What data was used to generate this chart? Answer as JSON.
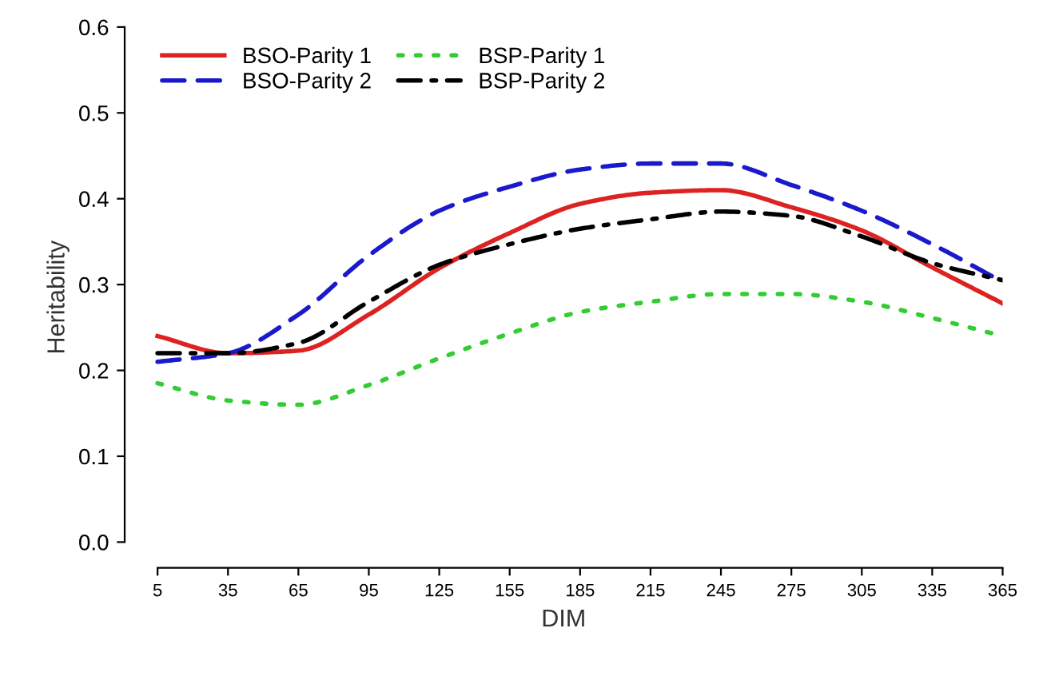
{
  "chart_data": {
    "type": "line",
    "xlabel": "DIM",
    "ylabel": "Heritability",
    "xlim": [
      -9,
      365
    ],
    "ylim": [
      -0.03,
      0.6
    ],
    "xticks": [
      5,
      35,
      65,
      95,
      125,
      155,
      185,
      215,
      245,
      275,
      305,
      335,
      365
    ],
    "yticks": [
      {
        "value": 0,
        "label": "0.0"
      },
      0.1,
      0.2,
      0.3,
      0.4,
      0.5,
      0.6
    ],
    "grid": false,
    "legend": "top left",
    "x": [
      5,
      35,
      65,
      95,
      125,
      155,
      185,
      215,
      245,
      275,
      305,
      335,
      365
    ],
    "series": [
      {
        "name": "BSO-Parity 1",
        "color": "#dd2222",
        "line_style": "solid",
        "values": [
          0.24,
          0.22,
          0.223,
          0.265,
          0.319,
          0.36,
          0.394,
          0.407,
          0.41,
          0.39,
          0.363,
          0.32,
          0.278
        ]
      },
      {
        "name": "BSO-Parity 2",
        "color": "#1a1acc",
        "line_style": "dashed",
        "values": [
          0.21,
          0.22,
          0.265,
          0.334,
          0.386,
          0.414,
          0.434,
          0.441,
          0.441,
          0.416,
          0.386,
          0.347,
          0.303
        ]
      },
      {
        "name": "BSP-Parity 1",
        "color": "#33cc33",
        "line_style": "dotted",
        "values": [
          0.185,
          0.165,
          0.16,
          0.183,
          0.214,
          0.243,
          0.268,
          0.28,
          0.289,
          0.289,
          0.28,
          0.261,
          0.24
        ]
      },
      {
        "name": "BSP-Parity 2",
        "color": "#000000",
        "line_style": "dashdot",
        "values": [
          0.22,
          0.22,
          0.232,
          0.28,
          0.323,
          0.347,
          0.365,
          0.376,
          0.385,
          0.38,
          0.356,
          0.325,
          0.305
        ]
      }
    ]
  }
}
